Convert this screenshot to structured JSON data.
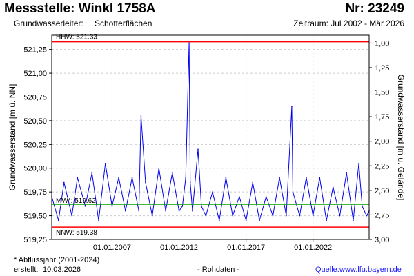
{
  "header": {
    "title": "Messstelle: Winkl 1758A",
    "number": "Nr: 23249",
    "aquifer_label": "Grundwasserleiter:",
    "aquifer_value": "Schotterflächen",
    "period": "Zeitraum: Jul 2002 - Mär 2026"
  },
  "footer": {
    "footnote": "* Abflussjahr (2001-2024)",
    "created_label": "erstellt:",
    "created_value": "10.03.2026",
    "data_type": "- Rohdaten -",
    "source_label": "Quelle:",
    "source_value": "www.lfu.bayern.de"
  },
  "colors": {
    "series": "#0000ee",
    "reference_high_low": "#ff0000",
    "reference_mean": "#00a000",
    "grid": "#cccccc",
    "source_link": "#1a1aff"
  },
  "chart_data": {
    "type": "line",
    "ylabel": "Grundwasserstand [m ü. NN]",
    "ylabel_right": "Grundwasserstand [m u. Gelände]",
    "xlim": [
      "2002-07-01",
      "2026-03-10"
    ],
    "ylim": [
      519.25,
      521.4
    ],
    "ylim_right": [
      3.0,
      0.92
    ],
    "grid": true,
    "x_ticks": [
      "2007-01-01",
      "2012-01-01",
      "2017-01-01",
      "2022-01-01"
    ],
    "x_tick_labels": [
      "01.01.2007",
      "01.01.2012",
      "01.01.2017",
      "01.01.2022"
    ],
    "y_ticks": [
      519.25,
      519.5,
      519.75,
      520.0,
      520.25,
      520.5,
      520.75,
      521.0,
      521.25
    ],
    "y_tick_labels": [
      "519,25",
      "519,50",
      "519,75",
      "520,00",
      "520,25",
      "520,50",
      "520,75",
      "521,00",
      "521,25"
    ],
    "y_ticks_right": [
      1.0,
      1.25,
      1.5,
      1.75,
      2.0,
      2.25,
      2.5,
      2.75,
      3.0
    ],
    "y_tick_labels_right": [
      "1,00",
      "1,25",
      "1,50",
      "1,75",
      "2,00",
      "2,25",
      "2,50",
      "2,75",
      "3,00"
    ],
    "reference_lines": [
      {
        "label": "HHW: 521.33",
        "value": 521.33,
        "kind": "high"
      },
      {
        "label": "MW*: 519.62",
        "value": 519.62,
        "kind": "mean"
      },
      {
        "label": "NNW: 519.38",
        "value": 519.38,
        "kind": "low"
      }
    ],
    "series": [
      {
        "x": [
          "2002-07-01",
          "2003-01-01",
          "2003-06-01",
          "2004-01-01",
          "2004-06-01",
          "2005-01-01",
          "2005-07-01",
          "2006-01-01",
          "2006-07-01",
          "2007-01-01",
          "2007-07-01",
          "2008-01-01",
          "2008-07-01",
          "2009-01-01",
          "2009-03-01",
          "2009-07-01",
          "2010-01-01",
          "2010-07-01",
          "2011-01-01",
          "2011-07-01",
          "2012-01-01",
          "2012-04-01",
          "2012-07-01",
          "2012-10-01",
          "2012-11-01",
          "2013-01-01",
          "2013-06-01",
          "2013-09-01",
          "2014-01-01",
          "2014-07-01",
          "2015-01-01",
          "2015-07-01",
          "2016-01-01",
          "2016-07-01",
          "2017-01-01",
          "2017-07-01",
          "2018-01-01",
          "2018-07-01",
          "2019-01-01",
          "2019-07-01",
          "2020-01-01",
          "2020-06-01",
          "2020-07-01",
          "2021-01-01",
          "2021-07-01",
          "2022-01-01",
          "2022-07-01",
          "2023-01-01",
          "2023-07-01",
          "2024-01-01",
          "2024-07-01",
          "2025-01-01",
          "2025-06-01",
          "2025-09-01",
          "2026-01-01",
          "2026-03-10"
        ],
        "values": [
          519.7,
          519.45,
          519.85,
          519.5,
          519.9,
          519.6,
          519.95,
          519.45,
          520.05,
          519.6,
          519.9,
          519.55,
          519.9,
          519.55,
          520.55,
          519.85,
          519.5,
          520.0,
          519.55,
          519.95,
          519.55,
          519.6,
          519.9,
          521.33,
          519.85,
          519.55,
          520.2,
          519.6,
          519.5,
          519.75,
          519.45,
          519.9,
          519.5,
          519.7,
          519.45,
          519.85,
          519.45,
          519.7,
          519.5,
          519.9,
          519.5,
          520.65,
          519.75,
          519.5,
          519.9,
          519.5,
          519.9,
          519.45,
          519.8,
          519.5,
          519.95,
          519.45,
          520.05,
          519.6,
          519.5,
          519.55
        ]
      }
    ]
  }
}
